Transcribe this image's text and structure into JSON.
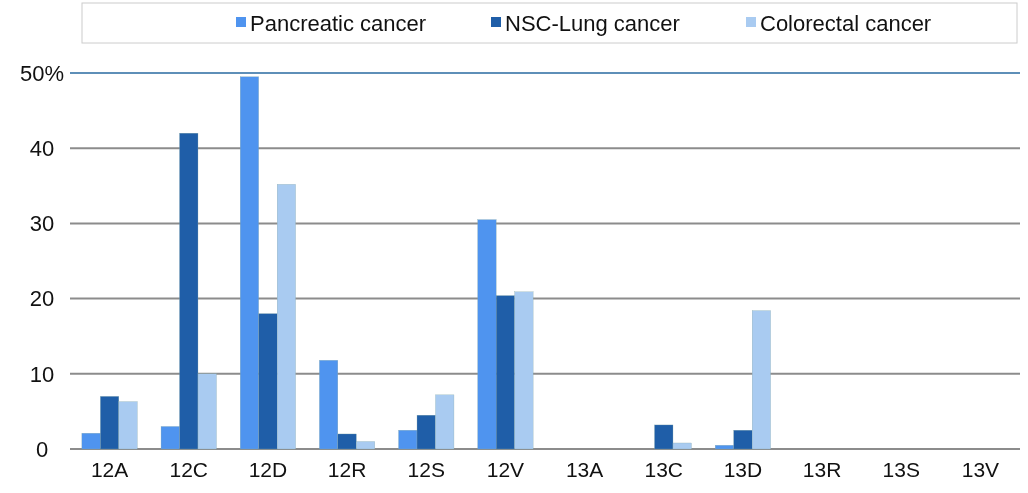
{
  "chart_data": {
    "type": "bar",
    "categories": [
      "12A",
      "12C",
      "12D",
      "12R",
      "12S",
      "12V",
      "13A",
      "13C",
      "13D",
      "13R",
      "13S",
      "13V"
    ],
    "series": [
      {
        "name": "Pancreatic cancer",
        "color": "#4f94ef",
        "values": [
          2.1,
          3,
          49.5,
          11.8,
          2.5,
          30.5,
          0,
          0,
          0.5,
          0,
          0,
          0
        ]
      },
      {
        "name": "NSC-Lung cancer",
        "color": "#1f5ea8",
        "values": [
          7,
          42,
          18,
          2,
          4.5,
          20.4,
          0,
          3.2,
          2.5,
          0,
          0,
          0
        ]
      },
      {
        "name": "Colorectal cancer",
        "color": "#a9cbf1",
        "values": [
          6.3,
          10,
          35.2,
          1,
          7.2,
          20.9,
          0,
          0.8,
          18.4,
          0,
          0,
          0
        ]
      }
    ],
    "ylim": [
      0,
      50
    ],
    "yticks": [
      0,
      10,
      20,
      30,
      40,
      {
        "value": 50,
        "label": "50%"
      }
    ],
    "grid": "y",
    "legend": "top"
  }
}
